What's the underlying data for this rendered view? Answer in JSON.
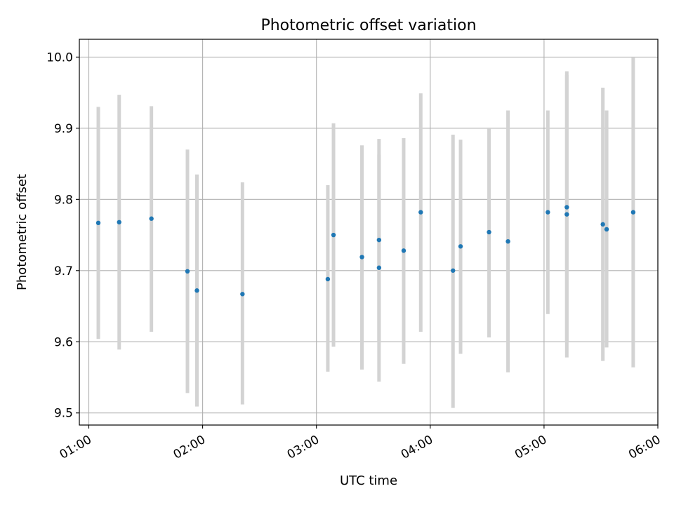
{
  "chart_data": {
    "type": "scatter",
    "title": "Photometric offset variation",
    "xlabel": "UTC time",
    "ylabel": "Photometric offset",
    "xlim": [
      "00:55",
      "06:00"
    ],
    "ylim": [
      9.483,
      10.025
    ],
    "grid": true,
    "x_ticks": [
      "01:00",
      "02:00",
      "03:00",
      "04:00",
      "05:00",
      "06:00"
    ],
    "y_ticks": [
      "9.5",
      "9.6",
      "9.7",
      "9.8",
      "9.9",
      "10.0"
    ],
    "marker_color": "#1f77b4",
    "errorbar_color": "#d3d3d3",
    "grid_color": "#b0b0b0",
    "points": [
      {
        "time": "01:05",
        "y": 9.767,
        "y_low": 9.604,
        "y_high": 9.93
      },
      {
        "time": "01:16",
        "y": 9.768,
        "y_low": 9.589,
        "y_high": 9.947
      },
      {
        "time": "01:33",
        "y": 9.773,
        "y_low": 9.614,
        "y_high": 9.931
      },
      {
        "time": "01:52",
        "y": 9.699,
        "y_low": 9.528,
        "y_high": 9.87
      },
      {
        "time": "01:57",
        "y": 9.672,
        "y_low": 9.509,
        "y_high": 9.835
      },
      {
        "time": "02:21",
        "y": 9.667,
        "y_low": 9.512,
        "y_high": 9.824
      },
      {
        "time": "03:06",
        "y": 9.688,
        "y_low": 9.558,
        "y_high": 9.82
      },
      {
        "time": "03:09",
        "y": 9.75,
        "y_low": 9.593,
        "y_high": 9.907
      },
      {
        "time": "03:24",
        "y": 9.719,
        "y_low": 9.561,
        "y_high": 9.876
      },
      {
        "time": "03:33",
        "y": 9.743,
        "y_low": 9.6,
        "y_high": 9.885
      },
      {
        "time": "03:33",
        "y": 9.704,
        "y_low": 9.544,
        "y_high": 9.863
      },
      {
        "time": "03:46",
        "y": 9.728,
        "y_low": 9.569,
        "y_high": 9.886
      },
      {
        "time": "03:55",
        "y": 9.782,
        "y_low": 9.614,
        "y_high": 9.949
      },
      {
        "time": "04:12",
        "y": 9.7,
        "y_low": 9.507,
        "y_high": 9.891
      },
      {
        "time": "04:16",
        "y": 9.734,
        "y_low": 9.583,
        "y_high": 9.884
      },
      {
        "time": "04:31",
        "y": 9.754,
        "y_low": 9.606,
        "y_high": 9.901
      },
      {
        "time": "04:41",
        "y": 9.741,
        "y_low": 9.557,
        "y_high": 9.925
      },
      {
        "time": "05:02",
        "y": 9.782,
        "y_low": 9.639,
        "y_high": 9.925
      },
      {
        "time": "05:12",
        "y": 9.789,
        "y_low": 9.6,
        "y_high": 9.98
      },
      {
        "time": "05:12",
        "y": 9.779,
        "y_low": 9.578,
        "y_high": 9.975
      },
      {
        "time": "05:31",
        "y": 9.765,
        "y_low": 9.573,
        "y_high": 9.957
      },
      {
        "time": "05:33",
        "y": 9.758,
        "y_low": 9.592,
        "y_high": 9.925
      },
      {
        "time": "05:47",
        "y": 9.782,
        "y_low": 9.564,
        "y_high": 9.999
      }
    ]
  }
}
